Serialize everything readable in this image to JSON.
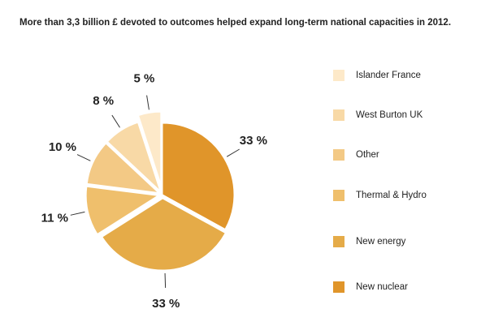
{
  "chart_data": {
    "type": "pie",
    "title": "More than 3,3 billion £ devoted to outcomes helped expand long-term national capacities in 2012.",
    "categories": [
      "New nuclear",
      "New energy",
      "Thermal & Hydro",
      "Other",
      "West Burton UK",
      "Islander France"
    ],
    "values": [
      33,
      33,
      11,
      10,
      8,
      5
    ],
    "value_labels": [
      "33 %",
      "33 %",
      "11 %",
      "10 %",
      "8 %",
      "5 %"
    ],
    "colors": [
      "#e0952a",
      "#e5ab48",
      "#efbf6c",
      "#f3c985",
      "#f8d9a6",
      "#fde9c9"
    ]
  }
}
